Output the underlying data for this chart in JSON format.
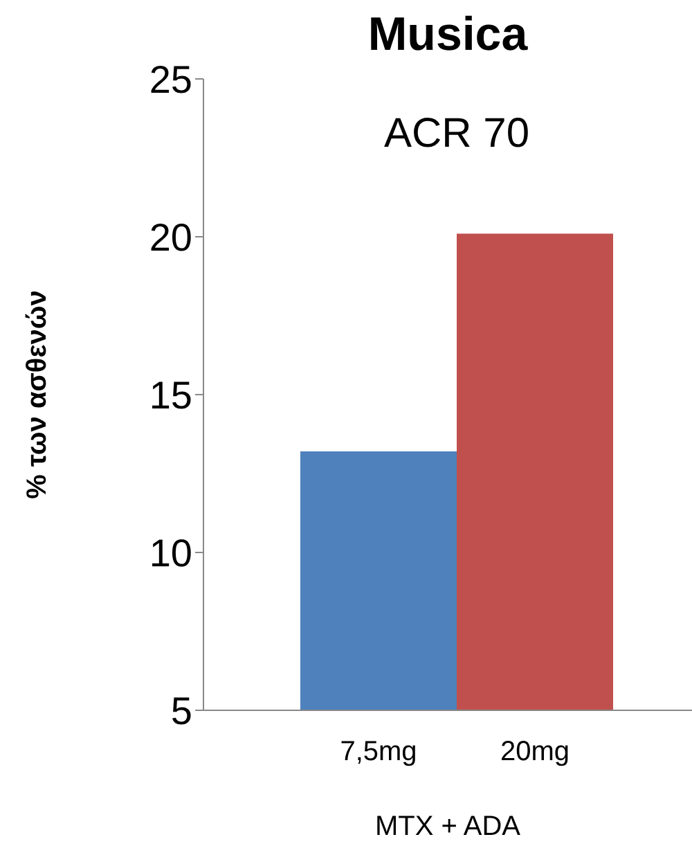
{
  "chart_data": {
    "type": "bar",
    "title": "Musica",
    "ylabel": "% των ασθενών",
    "xlabel": "MTX + ADA",
    "annotations": [
      "ACR 70"
    ],
    "categories": [
      "7,5mg",
      "20mg"
    ],
    "values": [
      13.2,
      20.1
    ],
    "colors": [
      "#4f81bd",
      "#c0504d"
    ],
    "ylim": [
      5,
      25
    ],
    "yticks": [
      5,
      10,
      15,
      20,
      25
    ],
    "grid": false
  }
}
